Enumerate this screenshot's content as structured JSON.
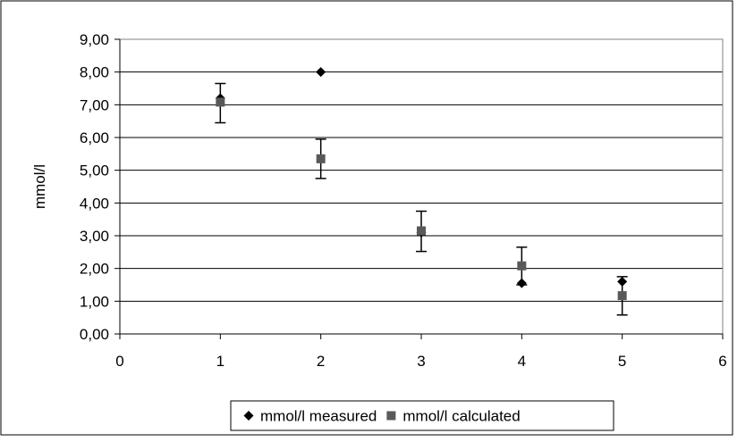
{
  "chart_data": {
    "type": "scatter",
    "title": "",
    "xlabel": "",
    "ylabel": "mmol/l",
    "xlim": [
      0,
      6
    ],
    "ylim": [
      0,
      9
    ],
    "xticks": [
      0,
      1,
      2,
      3,
      4,
      5,
      6
    ],
    "xtick_labels": [
      "0",
      "1",
      "2",
      "3",
      "4",
      "5",
      "6"
    ],
    "yticks": [
      0,
      1,
      2,
      3,
      4,
      5,
      6,
      7,
      8,
      9
    ],
    "ytick_labels": [
      "0,00",
      "1,00",
      "2,00",
      "3,00",
      "4,00",
      "5,00",
      "6,00",
      "7,00",
      "8,00",
      "9,00"
    ],
    "grid": "horizontal",
    "legend_position": "bottom",
    "series": [
      {
        "name": "mmol/l measured",
        "marker": "diamond",
        "color": "#000000",
        "x": [
          1,
          2,
          3,
          4,
          5
        ],
        "y": [
          7.2,
          8.0,
          3.1,
          1.55,
          1.6
        ]
      },
      {
        "name": "mmol/l calculated",
        "marker": "square",
        "color": "#595959",
        "x": [
          1,
          2,
          3,
          4,
          5
        ],
        "y": [
          7.08,
          5.35,
          3.15,
          2.08,
          1.17
        ],
        "error_low": [
          6.45,
          4.75,
          2.52,
          1.5,
          0.58
        ],
        "error_high": [
          7.65,
          5.95,
          3.75,
          2.65,
          1.75
        ]
      }
    ]
  }
}
